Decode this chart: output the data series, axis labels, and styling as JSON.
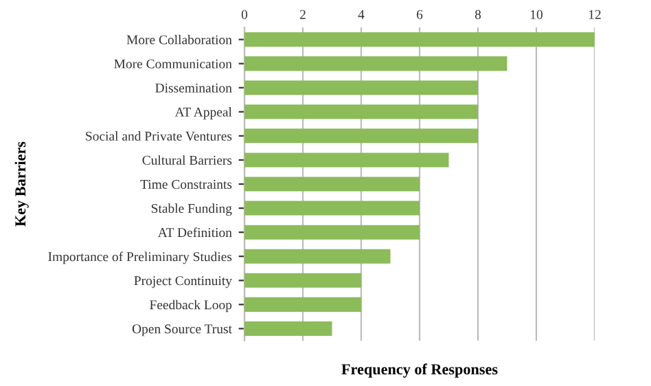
{
  "chart_data": {
    "type": "bar",
    "orientation": "horizontal",
    "categories": [
      "More Collaboration",
      "More Communication",
      "Dissemination",
      "AT Appeal",
      "Social and Private Ventures",
      "Cultural Barriers",
      "Time Constraints",
      "Stable Funding",
      "AT Definition",
      "Importance of Preliminary Studies",
      "Project Continuity",
      "Feedback Loop",
      "Open Source Trust"
    ],
    "values": [
      12,
      9,
      8,
      8,
      8,
      7,
      6,
      6,
      6,
      5,
      4,
      4,
      3
    ],
    "color": "#8cbb5a",
    "xlabel": "Frequency of Responses",
    "ylabel": "Key Barriers",
    "xlim": [
      0,
      12
    ],
    "xticks": [
      0,
      2,
      4,
      6,
      8,
      10,
      12
    ],
    "grid": "x",
    "legend": false
  }
}
